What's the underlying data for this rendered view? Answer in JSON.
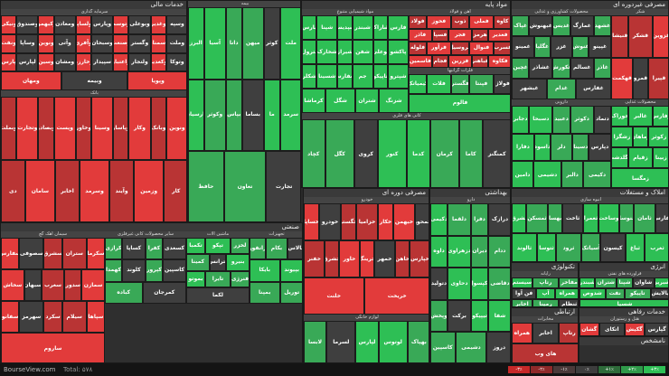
{
  "footer": {
    "brand": "BourseView.com",
    "total": "Total: ۵۷۸"
  },
  "legend": [
    {
      "label": "-۳٪",
      "color": "#c62828"
    },
    {
      "label": "-۲٪",
      "color": "#8e2a2a"
    },
    {
      "label": "-۱٪",
      "color": "#4a3a3a"
    },
    {
      "label": "۰٪",
      "color": "#3d3d3d"
    },
    {
      "label": "+۱٪",
      "color": "#2e6b3a"
    },
    {
      "label": "+۲٪",
      "color": "#2f9a4a"
    },
    {
      "label": "+۳٪",
      "color": "#2ebf55"
    }
  ],
  "colors": {
    "up_strong": "#2ebf55",
    "up": "#39a957",
    "flat": "#3f3f3f",
    "down": "#b93434",
    "down_strong": "#e23b3b"
  },
  "sectors": [
    {
      "id": "khadamat-mali",
      "title": "خدمات مالی",
      "subs": [
        {
          "title": "سرمایه گذاری",
          "tiles": [
            "ونیکی",
            "وصندوق",
            "وکبهمن",
            "ومعادن",
            "ولساپا",
            "وپارس",
            "وتوسم",
            "وبوعلی",
            "وغدیر",
            "وسپه",
            "ونفت",
            "وساپا",
            "ونوین",
            "وآتی",
            "وآفری",
            "وسبحان",
            "وصنعت",
            "وگستر",
            "وسمنان",
            "وملت",
            "پارس",
            "لپارس",
            "وسین",
            "ومشان",
            "وخارزم",
            "سپیدار",
            "واعتبار",
            "ولتجار",
            "وکغدیر",
            "وتوکا",
            "ومهان",
            "وبیمه",
            "وپویا"
          ],
          "tone": "mixed-red"
        },
        {
          "title": "بانک",
          "tiles": [
            "وبملت",
            "وتجارت",
            "وبصادر",
            "وپست",
            "وخاور",
            "وسینا",
            "وپاسار",
            "وکار",
            "وبانک",
            "ونوین",
            "دی",
            "سامان",
            "اخابر",
            "وسرمد",
            "وآیند",
            "وزمین",
            "کار"
          ],
          "tone": "mixed"
        },
        {
          "title": "بیمه",
          "tiles": [
            "البرز",
            "آسیا",
            "دانا",
            "میهن",
            "کوثر",
            "ملت",
            "پارسیان",
            "وکوثر",
            "بپاس",
            "بساما",
            "ما",
            "سرمد",
            "حافظ",
            "تعاون",
            "تجارت"
          ],
          "tone": "green"
        }
      ]
    },
    {
      "id": "mavad-payeh",
      "title": "مواد پایه",
      "subs": [
        {
          "title": "مواد شیمیایی متنوع",
          "tiles": [
            "پارس",
            "شپنا",
            "شپدیس",
            "شبندر",
            "شاراک",
            "فارس",
            "پترول",
            "شخارک",
            "شیراز",
            "شفن",
            "بوعلی",
            "پاکشو",
            "شکلر",
            "شسینا",
            "شفارس",
            "جم",
            "تاپیکو",
            "شپترو",
            "کرماشا",
            "شگل",
            "شتران",
            "شزنگ"
          ],
          "tone": "mixed-green"
        },
        {
          "title": "آهن و فولاد",
          "tiles": [
            "فولاد",
            "فخوز",
            "ذوب",
            "فملی",
            "کاوه",
            "فاذر",
            "فسپا",
            "فجر",
            "هرمز",
            "فغدیر",
            "فلوله",
            "فرآور",
            "فروسیل",
            "فنوال",
            "فسرب",
            "فاسمین",
            "فجام",
            "فزرین",
            "فباهنر",
            "فکاوه"
          ],
          "tone": "mixed-red"
        },
        {
          "title": "فلزات گرانبها",
          "tiles": [
            "کیمیاتک",
            "فلات",
            "فگستر",
            "فپنتا",
            "فولاژ",
            "فالوم"
          ],
          "tone": "green"
        },
        {
          "title": "کانی های فلزی",
          "tiles": [
            "کچاد",
            "کگل",
            "کروی",
            "کنور",
            "کدما",
            "کرمان",
            "کاما",
            "کمنگنز"
          ],
          "tone": "green"
        }
      ]
    },
    {
      "id": "masrafi-gheir",
      "title": "مصرفی غیردوره ای",
      "subs": [
        {
          "title": "محصولات کشاورزی و غذایی",
          "tiles": [
            "غپاک",
            "غبهنوش",
            "غدیس",
            "غمارگ",
            "غشهد",
            "غمینو",
            "غگلپا",
            "غزر",
            "غنوش",
            "غپینو",
            "غچین",
            "غشاذر",
            "غکورش",
            "غسالم",
            "غاذر",
            "غبشهر",
            "غدام",
            "غفارس"
          ],
          "tone": "mixed"
        },
        {
          "title": "شکر",
          "tiles": [
            "قنیشا",
            "قشکر",
            "قزوین",
            "قهکمت",
            "قمرو",
            "قپیرا"
          ],
          "tone": "red"
        },
        {
          "title": "دارویی",
          "tiles": [
            "دجابر",
            "دسبحا",
            "دعبید",
            "دکوثر",
            "دتماد",
            "دفارا",
            "داسوه",
            "دلر",
            "دسینا",
            "دپارس",
            "دامین",
            "دشیمی",
            "دالبر",
            "دکیمی"
          ],
          "tone": "green"
        },
        {
          "title": "محصولات غذایی",
          "tiles": [
            "خوراک",
            "غالبر",
            "زفارس",
            "زشگزا",
            "زماهان",
            "زکوثر",
            "زگلدشت",
            "زقیام",
            "زبینا",
            "زمگسا"
          ],
          "tone": "mixed-green"
        }
      ]
    },
    {
      "id": "sanati",
      "title": "صنعتی",
      "subs": [
        {
          "title": "سیمان آهک گچ",
          "tiles": [
            "سفارس",
            "سصوفی",
            "سشرق",
            "ستران",
            "سکرما",
            "سخاش",
            "سبهان",
            "سغرب",
            "سدور",
            "سمازن",
            "سفانو",
            "سهرمز",
            "سکرد",
            "سیلام",
            "سپاها",
            "ساروم"
          ],
          "tone": "red"
        },
        {
          "title": "سایر محصولات کانی غیرفلزی",
          "tiles": [
            "کرازی",
            "کساپا",
            "کفرا",
            "کسعدی",
            "کهمدا",
            "کلوند",
            "کپرور",
            "کاسپین",
            "کباده",
            "کمرجان"
          ],
          "tone": "mixed-green"
        },
        {
          "title": "ماشین آلات",
          "tiles": [
            "تکمبا",
            "تپکو",
            "لخزر",
            "کمینا",
            "بترانس",
            "بنیرو",
            "بموتو",
            "تایرا",
            "فنرژی",
            "لکما"
          ],
          "tone": "green"
        },
        {
          "title": "تجهیزات",
          "tiles": [
            "رانفور",
            "بکام",
            "بالاس",
            "بایکا",
            "بپیوند",
            "بمپنا",
            "توریل"
          ],
          "tone": "green"
        }
      ]
    },
    {
      "id": "masrafi-dore",
      "title": "مصرفی دوره ای",
      "subs": [
        {
          "title": "خودرو",
          "tiles": [
            "خساپا",
            "خودرو",
            "خگستر",
            "خزامیا",
            "خکار",
            "خبهمن",
            "خمحور",
            "خفنر",
            "خشرق",
            "خاور",
            "خرینگ",
            "خمهر",
            "خاهن",
            "خپارس",
            "خلنت",
            "خریخت"
          ],
          "tone": "red"
        },
        {
          "title": "لوازم خانگی",
          "tiles": [
            "لابسا",
            "لسرما",
            "لپارس",
            "لوتوس",
            "بهپاک"
          ],
          "tone": "green"
        }
      ]
    },
    {
      "id": "behdashti",
      "title": "بهداشتی",
      "subs": [
        {
          "title": "دارو",
          "tiles": [
            "دکیمی",
            "دلقما",
            "دفرا",
            "درازک",
            "داوه",
            "دزهراوی",
            "دیران",
            "ددام",
            "دتولید",
            "دحاوی",
            "دکپسول",
            "دقاضی",
            "وپخش",
            "برکت",
            "تیپیکو",
            "شفا",
            "کاسپین",
            "دشیمی",
            "دروز"
          ],
          "tone": "green"
        }
      ]
    },
    {
      "id": "amlak",
      "title": "املاک و مستغلات",
      "subs": [
        {
          "title": "انبوه سازی",
          "tiles": [
            "ثشرق",
            "ثمسکن",
            "ثبهساز",
            "ثاخت",
            "ثعمرا",
            "وساخت",
            "ثنوسا",
            "ثامان",
            "ثفارس",
            "ثالوند",
            "ثتوسا",
            "ثرود",
            "آسیاتک",
            "کیسون",
            "ثباغ",
            "ثغرب"
          ],
          "tone": "green"
        }
      ]
    },
    {
      "id": "energy",
      "title": "انرژی",
      "subs": [
        {
          "title": "فراورده های نفتی",
          "tiles": [
            "شبندر",
            "شتران",
            "شپنا",
            "شاوان",
            "شبریز",
            "شدوص",
            "نفت",
            "تاپیکو",
            "پالایش",
            "شسپا"
          ],
          "tone": "green"
        }
      ]
    },
    {
      "id": "tech",
      "title": "تکنولوژی",
      "subs": [
        {
          "title": "رایانه",
          "tiles": [
            "سیستم",
            "رتاپ",
            "مفاخر",
            "فن آوا",
            "آپ",
            "همراه",
            "اخابر",
            "رمپنا",
            "ثنظام"
          ],
          "tone": "green"
        }
      ]
    },
    {
      "id": "refahi",
      "title": "خدمات رفاهی",
      "subs": [
        {
          "title": "هتل و رستوران",
          "tiles": [
            "گشان",
            "اتکای",
            "گکیش",
            "گپارس"
          ],
          "tone": "mixed-red"
        }
      ]
    },
    {
      "id": "comm",
      "title": "ارتباطی",
      "subs": [
        {
          "title": "مخابرات",
          "tiles": [
            "همراه",
            "اخابر",
            "رتاپ",
            "های وب"
          ],
          "tone": "red"
        }
      ]
    },
    {
      "id": "unknown",
      "title": "نامشخص",
      "subs": []
    }
  ]
}
